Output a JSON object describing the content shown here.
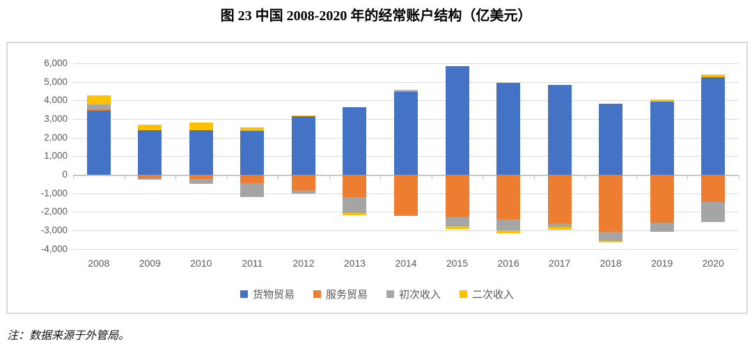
{
  "title": "图 23 中国 2008-2020 年的经常账户结构（亿美元）",
  "note": "注：数据来源于外管局。",
  "chart_data": {
    "type": "bar",
    "stacked": true,
    "title": "图 23 中国 2008-2020 年的经常账户结构（亿美元）",
    "unit": "亿美元",
    "categories": [
      "2008",
      "2009",
      "2010",
      "2011",
      "2012",
      "2013",
      "2014",
      "2015",
      "2016",
      "2017",
      "2018",
      "2019",
      "2020"
    ],
    "series": [
      {
        "name": "货物贸易",
        "color": "#4472C4",
        "values": [
          3440,
          2390,
          2390,
          2375,
          3165,
          3625,
          4450,
          5860,
          4950,
          4825,
          3815,
          3925,
          5250
        ]
      },
      {
        "name": "服务贸易",
        "color": "#ED7D31",
        "values": [
          90,
          -190,
          -215,
          -460,
          -840,
          -1190,
          -2215,
          -2290,
          -2410,
          -2640,
          -3080,
          -2590,
          -1465
        ]
      },
      {
        "name": "初次收入",
        "color": "#A5A5A5",
        "values": [
          260,
          -90,
          -290,
          -725,
          -190,
          -860,
          75,
          -500,
          -600,
          -185,
          -480,
          -500,
          -1100
        ]
      },
      {
        "name": "二次收入",
        "color": "#FFC000",
        "values": [
          500,
          325,
          425,
          190,
          40,
          -140,
          50,
          -150,
          -150,
          -150,
          -80,
          140,
          140
        ]
      }
    ],
    "ylim": [
      -4000,
      6000
    ],
    "ytick_step": 1000,
    "ytick_labels": [
      "6,000",
      "5,000",
      "4,000",
      "3,000",
      "2,000",
      "1,000",
      "0",
      "-1,000",
      "-2,000",
      "-3,000",
      "-4,000"
    ],
    "xlabel": "",
    "ylabel": "",
    "grid": true,
    "legend_position": "bottom",
    "axis_label_color": "#595959",
    "gridline_color": "#D9D9D9"
  }
}
